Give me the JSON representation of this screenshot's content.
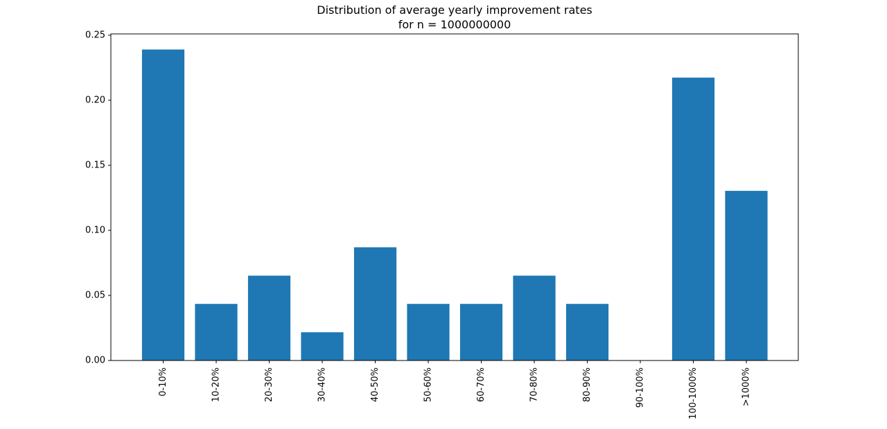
{
  "chart_data": {
    "type": "bar",
    "title": "Distribution of average yearly improvement rates",
    "subtitle": "for n = 1000000000",
    "xlabel": "",
    "ylabel": "",
    "categories": [
      "0-10%",
      "10-20%",
      "20-30%",
      "30-40%",
      "40-50%",
      "50-60%",
      "60-70%",
      "70-80%",
      "80-90%",
      "90-100%",
      "100-1000%",
      ">1000%"
    ],
    "values": [
      0.239,
      0.0435,
      0.0652,
      0.0217,
      0.087,
      0.0435,
      0.0435,
      0.0652,
      0.0435,
      0.0,
      0.2174,
      0.1304
    ],
    "ylim": [
      0,
      0.251
    ],
    "yticks": [
      0.0,
      0.05,
      0.1,
      0.15,
      0.2,
      0.25
    ],
    "ytick_labels": [
      "0.00",
      "0.05",
      "0.10",
      "0.15",
      "0.20",
      "0.25"
    ],
    "bar_color": "#1f77b4",
    "grid": false,
    "legend": "none"
  }
}
